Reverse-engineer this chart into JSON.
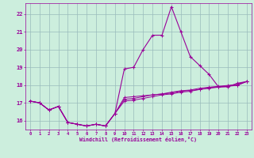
{
  "xlabel": "Windchill (Refroidissement éolien,°C)",
  "background_color": "#cceedd",
  "grid_color": "#99bbbb",
  "line_color": "#990099",
  "x_hours": [
    0,
    1,
    2,
    3,
    4,
    5,
    6,
    7,
    8,
    9,
    10,
    11,
    12,
    13,
    14,
    15,
    16,
    17,
    18,
    19,
    20,
    21,
    22,
    23
  ],
  "temp_actual": [
    17.1,
    17.0,
    16.6,
    16.8,
    15.9,
    15.8,
    15.7,
    15.8,
    15.7,
    16.4,
    18.9,
    19.0,
    20.0,
    20.8,
    20.8,
    22.4,
    21.0,
    19.6,
    19.1,
    18.6,
    17.9,
    17.9,
    18.1,
    18.2
  ],
  "windchill1": [
    17.1,
    17.0,
    16.6,
    16.8,
    15.9,
    15.8,
    15.7,
    15.8,
    15.7,
    16.4,
    17.3,
    17.35,
    17.4,
    17.45,
    17.5,
    17.55,
    17.65,
    17.7,
    17.75,
    17.85,
    17.9,
    17.95,
    18.0,
    18.2
  ],
  "windchill2": [
    17.1,
    17.0,
    16.6,
    16.8,
    15.9,
    15.8,
    15.7,
    15.8,
    15.7,
    16.4,
    17.2,
    17.25,
    17.35,
    17.45,
    17.5,
    17.6,
    17.68,
    17.72,
    17.82,
    17.88,
    17.93,
    17.98,
    18.04,
    18.2
  ],
  "windchill3": [
    17.1,
    17.0,
    16.6,
    16.8,
    15.9,
    15.8,
    15.7,
    15.8,
    15.7,
    16.4,
    17.1,
    17.15,
    17.25,
    17.35,
    17.45,
    17.5,
    17.6,
    17.65,
    17.75,
    17.82,
    17.88,
    17.93,
    17.98,
    18.2
  ],
  "ylim": [
    15.5,
    22.6
  ],
  "yticks": [
    16,
    17,
    18,
    19,
    20,
    21,
    22
  ],
  "xticks": [
    0,
    1,
    2,
    3,
    4,
    5,
    6,
    7,
    8,
    9,
    10,
    11,
    12,
    13,
    14,
    15,
    16,
    17,
    18,
    19,
    20,
    21,
    22,
    23
  ]
}
